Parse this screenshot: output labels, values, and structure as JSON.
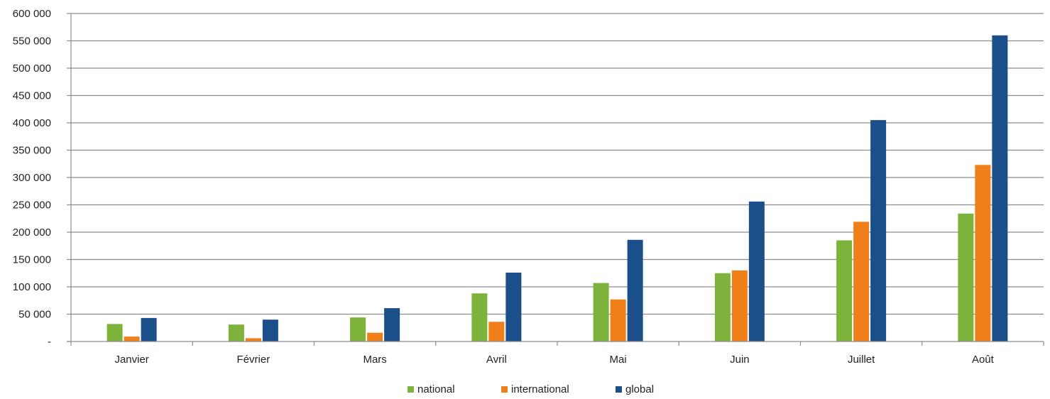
{
  "chart_data": {
    "type": "bar",
    "categories": [
      "Janvier",
      "Février",
      "Mars",
      "Avril",
      "Mai",
      "Juin",
      "Juillet",
      "Août"
    ],
    "series": [
      {
        "name": "national",
        "color": "#7db33a",
        "values": [
          32000,
          31000,
          44000,
          88000,
          107000,
          125000,
          185000,
          234000
        ]
      },
      {
        "name": "international",
        "color": "#f07f1a",
        "values": [
          9000,
          6000,
          16000,
          36000,
          77000,
          130000,
          219000,
          323000
        ]
      },
      {
        "name": "global",
        "color": "#1b4f8a",
        "values": [
          43000,
          40000,
          61000,
          126000,
          186000,
          256000,
          405000,
          560000
        ]
      }
    ],
    "ylim": [
      0,
      600000
    ],
    "yticks": [
      0,
      50000,
      100000,
      150000,
      200000,
      250000,
      300000,
      350000,
      400000,
      450000,
      500000,
      550000,
      600000
    ],
    "ytick_labels": [
      "-",
      "50 000",
      "100 000",
      "150 000",
      "200 000",
      "250 000",
      "300 000",
      "350 000",
      "400 000",
      "450 000",
      "500 000",
      "550 000",
      "600 000"
    ],
    "grid": true,
    "legend_position": "bottom-center"
  }
}
